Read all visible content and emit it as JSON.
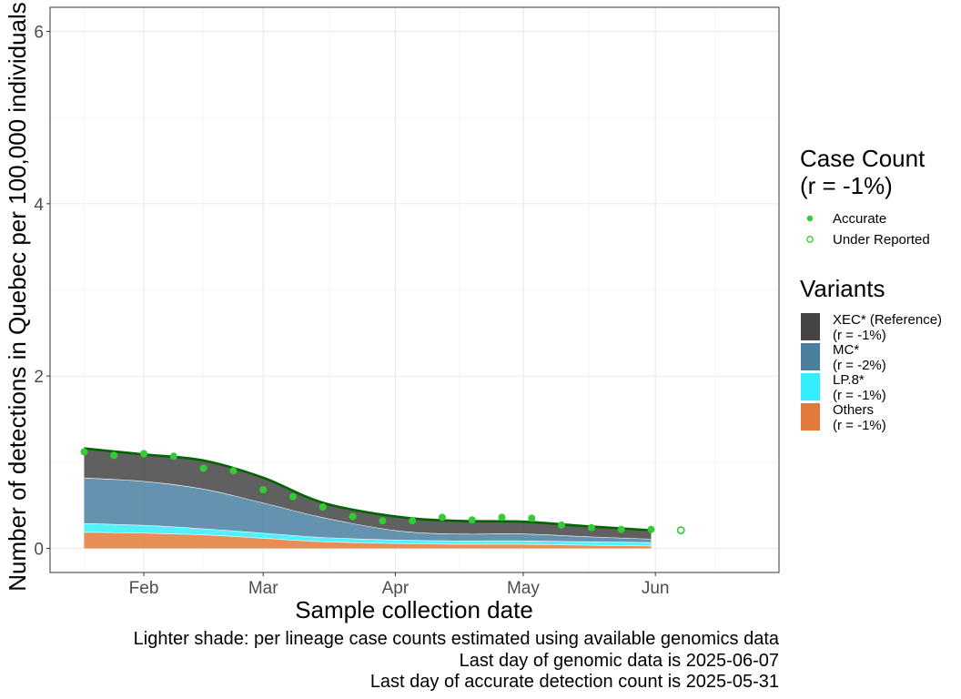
{
  "chart_data": {
    "type": "area",
    "title": "",
    "xlabel": "Sample collection date",
    "ylabel": "Number of detections in Quebec per 100,000 individuals",
    "x_ticks": [
      "Feb",
      "Mar",
      "Apr",
      "May",
      "Jun"
    ],
    "x_tick_dates": [
      "2025-02-01",
      "2025-03-01",
      "2025-04-01",
      "2025-05-01",
      "2025-06-01"
    ],
    "xlim": [
      "2025-01-10",
      "2025-06-30"
    ],
    "y_ticks": [
      "0",
      "2",
      "4",
      "6"
    ],
    "ylim": [
      -0.28,
      6.28
    ],
    "grid": true,
    "legend_position": "right",
    "dates": [
      "2025-01-18",
      "2025-02-01",
      "2025-02-15",
      "2025-03-01",
      "2025-03-15",
      "2025-04-01",
      "2025-04-15",
      "2025-05-01",
      "2025-05-15",
      "2025-05-31"
    ],
    "series": [
      {
        "name": "Others",
        "color": "#e07b39",
        "values": [
          0.19,
          0.18,
          0.16,
          0.12,
          0.08,
          0.06,
          0.05,
          0.05,
          0.04,
          0.03
        ]
      },
      {
        "name": "LP.8*",
        "color": "#33eeff",
        "values": [
          0.1,
          0.09,
          0.07,
          0.06,
          0.05,
          0.04,
          0.04,
          0.04,
          0.04,
          0.04
        ]
      },
      {
        "name": "MC*",
        "color": "#4a7fa0",
        "values": [
          0.53,
          0.51,
          0.46,
          0.35,
          0.23,
          0.11,
          0.08,
          0.08,
          0.06,
          0.04
        ]
      },
      {
        "name": "XEC* (Reference)",
        "color": "#444444",
        "values": [
          0.34,
          0.31,
          0.33,
          0.29,
          0.17,
          0.16,
          0.15,
          0.14,
          0.12,
          0.1
        ]
      }
    ],
    "total_line": {
      "color": "#006400"
    },
    "case_counts": {
      "accurate": [
        {
          "date": "2025-01-18",
          "value": 1.12
        },
        {
          "date": "2025-01-25",
          "value": 1.08
        },
        {
          "date": "2025-02-01",
          "value": 1.1
        },
        {
          "date": "2025-02-08",
          "value": 1.07
        },
        {
          "date": "2025-02-15",
          "value": 0.93
        },
        {
          "date": "2025-02-22",
          "value": 0.9
        },
        {
          "date": "2025-03-01",
          "value": 0.68
        },
        {
          "date": "2025-03-08",
          "value": 0.6
        },
        {
          "date": "2025-03-15",
          "value": 0.48
        },
        {
          "date": "2025-03-22",
          "value": 0.37
        },
        {
          "date": "2025-03-29",
          "value": 0.32
        },
        {
          "date": "2025-04-05",
          "value": 0.32
        },
        {
          "date": "2025-04-12",
          "value": 0.36
        },
        {
          "date": "2025-04-19",
          "value": 0.33
        },
        {
          "date": "2025-04-26",
          "value": 0.36
        },
        {
          "date": "2025-05-03",
          "value": 0.35
        },
        {
          "date": "2025-05-10",
          "value": 0.27
        },
        {
          "date": "2025-05-17",
          "value": 0.24
        },
        {
          "date": "2025-05-24",
          "value": 0.22
        },
        {
          "date": "2025-05-31",
          "value": 0.22
        }
      ],
      "under_reported": [
        {
          "date": "2025-06-07",
          "value": 0.21
        }
      ],
      "color": "#33cc33"
    }
  },
  "legend": {
    "case_title_line1": "Case Count",
    "case_title_line2": "(r = -1%)",
    "case_items": [
      {
        "label": "Accurate",
        "icon": "filled-dot"
      },
      {
        "label": "Under Reported",
        "icon": "hollow-dot"
      }
    ],
    "variants_title": "Variants",
    "variant_items": [
      {
        "label": "XEC* (Reference)",
        "rate": "(r = -1%)",
        "color": "#444444"
      },
      {
        "label": "MC*",
        "rate": "(r = -2%)",
        "color": "#4a7fa0"
      },
      {
        "label": "LP.8*",
        "rate": "(r = -1%)",
        "color": "#33eeff"
      },
      {
        "label": "Others",
        "rate": "(r = -1%)",
        "color": "#e07b39"
      }
    ]
  },
  "captions": [
    "Lighter shade: per lineage case counts estimated using available genomics data",
    "Last day of genomic data is 2025-06-07",
    "Last day of accurate detection count is 2025-05-31"
  ]
}
